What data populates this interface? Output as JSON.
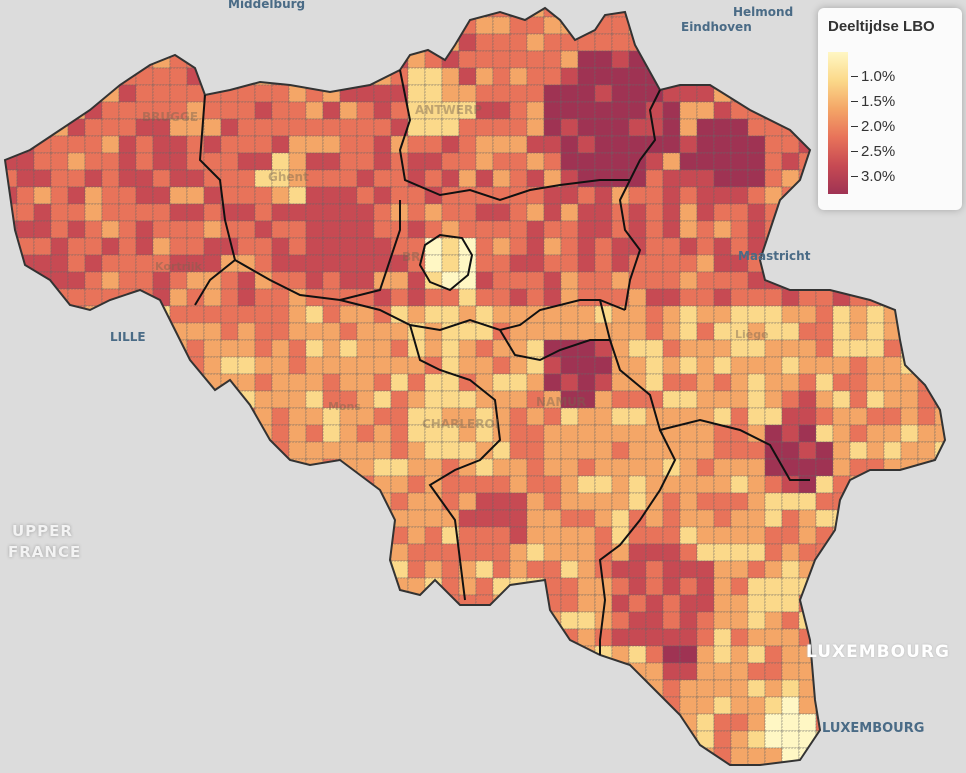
{
  "legend": {
    "title": "Deeltijdse LBO",
    "ticks": [
      "1.0%",
      "1.5%",
      "2.0%",
      "2.5%",
      "3.0%"
    ],
    "colors": [
      "#fff7c4",
      "#fbd98a",
      "#f4a667",
      "#e8735a",
      "#c74a53",
      "#9f3353"
    ]
  },
  "places": {
    "middelburg": "Middelburg",
    "helmond": "Helmond",
    "eindhoven": "Eindhoven",
    "lille": "LILLE",
    "maastricht": "Maastricht",
    "upper_france_1": "UPPER",
    "upper_france_2": "FRANCE",
    "luxembourg_country": "LUXEMBOURG",
    "luxembourg_city": "LUXEMBOURG",
    "brugge": "BRUGGE",
    "gent": "Ghent",
    "antwerpen": "ANTWERP",
    "brussel": "BR",
    "kortrijk": "Kortrijk",
    "mons": "Mons",
    "charleroi": "CHARLEROI",
    "namur": "NAMUR",
    "liege": "Liège"
  },
  "colors": {
    "background": "#dcdcdc",
    "province_border": "#111111",
    "municipality_border": "#555555"
  }
}
